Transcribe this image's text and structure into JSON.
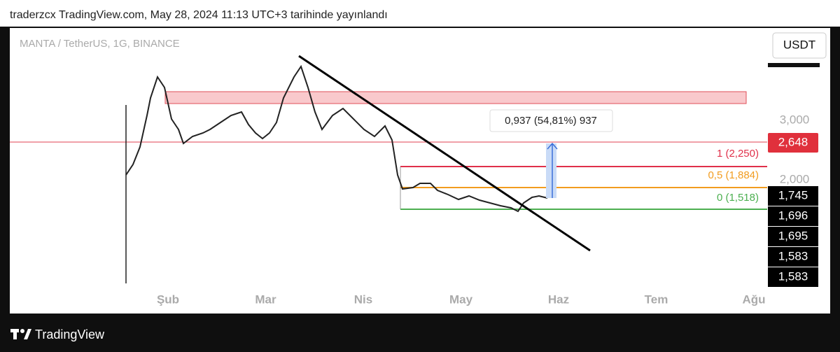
{
  "header": {
    "published": "traderzcx TradingView.com, May 28, 2024 11:13 UTC+3 tarihinde yayınlandı"
  },
  "chart": {
    "symbol": "MANTA / TetherUS, 1G, BINANCE",
    "currency": "USDT",
    "months": [
      "Şub",
      "Mar",
      "Nis",
      "May",
      "Haz",
      "Tem",
      "Ağu"
    ],
    "price_scale": [
      "3,000",
      "2,000"
    ],
    "price_tags": {
      "red": "2,648",
      "dark": [
        "1,745",
        "1,696",
        "1,695",
        "1,583",
        "1,583"
      ]
    },
    "fib_levels": [
      "1 (2,250)",
      "0,5 (1,884)",
      "0 (1,518)"
    ],
    "measure": "0,937 (54,81%) 937"
  },
  "footer": {
    "brand": "TradingView"
  }
}
